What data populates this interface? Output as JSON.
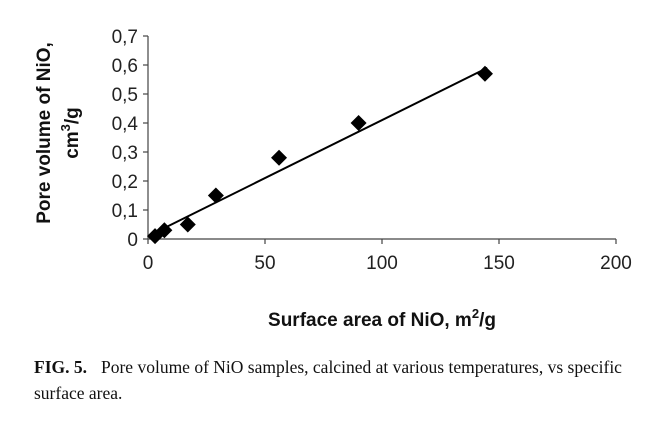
{
  "chart_data": {
    "type": "scatter",
    "xlabel": "Surface area of NiO, m",
    "xlabel_sup": "2",
    "xlabel_tail": "/g",
    "ylabel_line1": "Pore volume of NiO,",
    "ylabel_line2_pre": "cm",
    "ylabel_line2_sup": "3",
    "ylabel_line2_tail": "/g",
    "xlim": [
      0,
      200
    ],
    "ylim": [
      0,
      0.7
    ],
    "x_ticks": [
      0,
      50,
      100,
      150,
      200
    ],
    "x_tick_labels": [
      "0",
      "50",
      "100",
      "150",
      "200"
    ],
    "y_ticks": [
      0,
      0.1,
      0.2,
      0.3,
      0.4,
      0.5,
      0.6,
      0.7
    ],
    "y_tick_labels": [
      "0",
      "0,1",
      "0,2",
      "0,3",
      "0,4",
      "0,5",
      "0,6",
      "0,7"
    ],
    "grid": false,
    "marker": "diamond",
    "marker_color": "#000000",
    "points": [
      {
        "x": 3,
        "y": 0.01
      },
      {
        "x": 7,
        "y": 0.03
      },
      {
        "x": 17,
        "y": 0.05
      },
      {
        "x": 29,
        "y": 0.15
      },
      {
        "x": 56,
        "y": 0.28
      },
      {
        "x": 90,
        "y": 0.4
      },
      {
        "x": 144,
        "y": 0.57
      }
    ],
    "trendline": {
      "x": [
        0,
        145
      ],
      "y": [
        0.01,
        0.59
      ]
    }
  },
  "caption": {
    "label": "FIG. 5.",
    "text": "Pore volume of NiO samples, calcined at various temperatures, vs specific surface area."
  }
}
